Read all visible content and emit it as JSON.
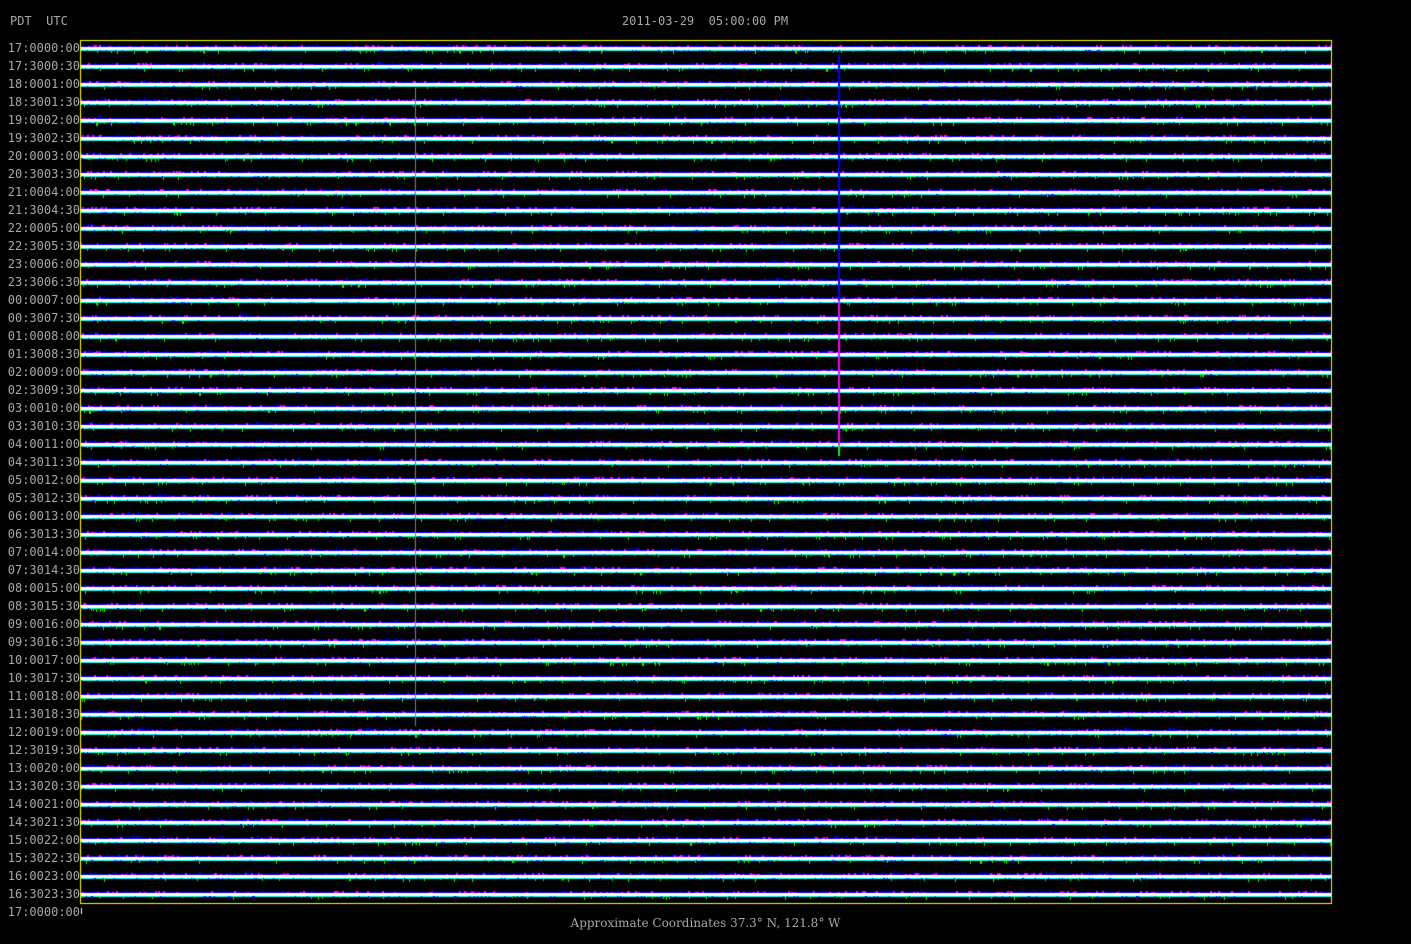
{
  "header": {
    "timezones": "PDT  UTC",
    "title": "2011-03-29  05:00:00 PM"
  },
  "footer": {
    "coordinates": "Approximate Coordinates 37.3° N, 121.8° W"
  },
  "colors": {
    "frame": "#ffff00",
    "trace": "#ffffff",
    "noise": [
      "#0000ff",
      "#00ffff",
      "#ff00ff",
      "#00ff00"
    ],
    "event_top": "#0000ff",
    "event_mid": "#ff00ff",
    "event_tail": "#00ff00",
    "label": "#a8a8a8"
  },
  "chart_data": {
    "type": "line",
    "title": "2011-03-29  05:00:00 PM",
    "description_kind": "helicorder",
    "row_interval_minutes": 30,
    "row_labels_pdt": [
      "17:00",
      "17:30",
      "18:00",
      "18:30",
      "19:00",
      "19:30",
      "20:00",
      "20:30",
      "21:00",
      "21:30",
      "22:00",
      "22:30",
      "23:00",
      "23:30",
      "00:00",
      "00:30",
      "01:00",
      "01:30",
      "02:00",
      "02:30",
      "03:00",
      "03:30",
      "04:00",
      "04:30",
      "05:00",
      "05:30",
      "06:00",
      "06:30",
      "07:00",
      "07:30",
      "08:00",
      "08:30",
      "09:00",
      "09:30",
      "10:00",
      "10:30",
      "11:00",
      "11:30",
      "12:00",
      "12:30",
      "13:00",
      "13:30",
      "14:00",
      "14:30",
      "15:00",
      "15:30",
      "16:00",
      "16:30",
      "17:00"
    ],
    "row_labels_utc": [
      "00:00",
      "00:30",
      "01:00",
      "01:30",
      "02:00",
      "02:30",
      "03:00",
      "03:30",
      "04:00",
      "04:30",
      "05:00",
      "05:30",
      "06:00",
      "06:30",
      "07:00",
      "07:30",
      "08:00",
      "08:30",
      "09:00",
      "09:30",
      "10:00",
      "10:30",
      "11:00",
      "11:30",
      "12:00",
      "12:30",
      "13:00",
      "13:30",
      "14:00",
      "14:30",
      "15:00",
      "15:30",
      "16:00",
      "16:30",
      "17:00",
      "17:30",
      "18:00",
      "18:30",
      "19:00",
      "19:30",
      "20:00",
      "20:30",
      "21:00",
      "21:30",
      "22:00",
      "22:30",
      "23:00",
      "23:30",
      "00:00"
    ],
    "events": [
      {
        "row_start_pdt": "17:30",
        "row_end_pdt": "04:00",
        "fraction_of_row": 0.606,
        "colors": [
          "#0000ff",
          "#ff00ff",
          "#00ff00"
        ]
      },
      {
        "row_start_pdt": "18:00",
        "row_end_pdt": "11:30",
        "fraction_of_row": 0.268,
        "colors": [
          "#808080"
        ]
      }
    ]
  }
}
